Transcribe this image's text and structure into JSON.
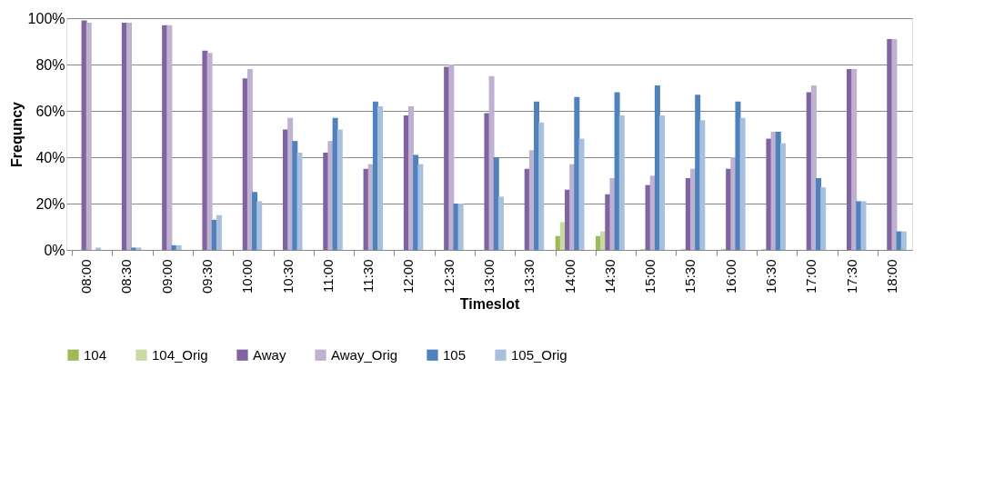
{
  "chart_data": {
    "type": "bar",
    "xlabel": "Timeslot",
    "ylabel": "Frequncy",
    "categories": [
      "08:00",
      "08:30",
      "09:00",
      "09:30",
      "10:00",
      "10:30",
      "11:00",
      "11:30",
      "12:00",
      "12:30",
      "13:00",
      "13:30",
      "14:00",
      "14:30",
      "15:00",
      "15:30",
      "16:00",
      "16:30",
      "17:00",
      "17:30",
      "18:00"
    ],
    "series": [
      {
        "name": "104",
        "color": "#9bbb59",
        "values": [
          0,
          0,
          0,
          0,
          0,
          0,
          0,
          0,
          0,
          0,
          0,
          0,
          6,
          6,
          0,
          0,
          0,
          0,
          0,
          0,
          0
        ]
      },
      {
        "name": "104_Orig",
        "color": "#c9dba3",
        "values": [
          0,
          0,
          0,
          0,
          0,
          0,
          0,
          0,
          0,
          0,
          0,
          0,
          12,
          8,
          0.5,
          0.5,
          0.5,
          0.5,
          0,
          0,
          0
        ]
      },
      {
        "name": "Away",
        "color": "#8064a2",
        "values": [
          99,
          98,
          97,
          86,
          74,
          52,
          42,
          35,
          58,
          79,
          59,
          35,
          26,
          24,
          28,
          31,
          35,
          48,
          68,
          78,
          91
        ]
      },
      {
        "name": "Away_Orig",
        "color": "#bfb1d0",
        "values": [
          98,
          98,
          97,
          85,
          78,
          57,
          47,
          37,
          62,
          80,
          75,
          43,
          37,
          31,
          32,
          35,
          40,
          51,
          71,
          78,
          91
        ]
      },
      {
        "name": "105",
        "color": "#4f81bd",
        "values": [
          0,
          1,
          2,
          13,
          25,
          47,
          57,
          64,
          41,
          20,
          40,
          64,
          66,
          68,
          71,
          67,
          64,
          51,
          31,
          21,
          8
        ]
      },
      {
        "name": "105_Orig",
        "color": "#a7c0de",
        "values": [
          1,
          1,
          2,
          15,
          21,
          42,
          52,
          62,
          37,
          20,
          23,
          55,
          48,
          58,
          58,
          56,
          57,
          46,
          27,
          21,
          8
        ]
      }
    ],
    "ylim": [
      0,
      100
    ],
    "yticks": [
      {
        "value": 0,
        "label": "0%"
      },
      {
        "value": 20,
        "label": "20%"
      },
      {
        "value": 40,
        "label": "40%"
      },
      {
        "value": 60,
        "label": "60%"
      },
      {
        "value": 80,
        "label": "80%"
      },
      {
        "value": 100,
        "label": "100%"
      }
    ],
    "grid": "y",
    "legend": "bottom"
  }
}
